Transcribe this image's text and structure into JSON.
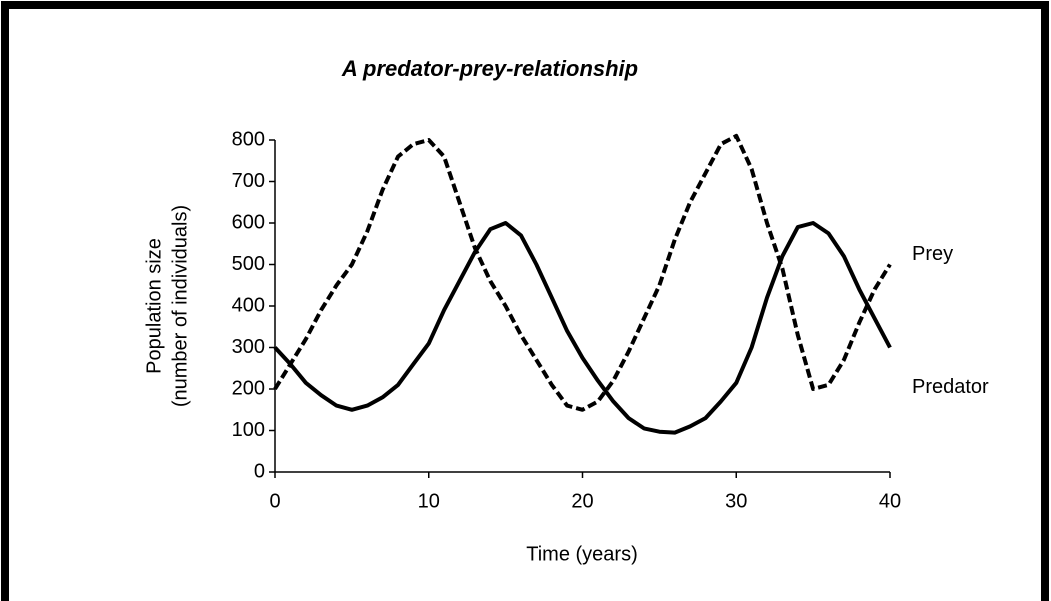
{
  "chart_data": {
    "type": "line",
    "title": "A predator-prey-relationship",
    "xlabel": "Time (years)",
    "ylabel": [
      "Population size",
      "(number of individuals)"
    ],
    "x": [
      0,
      1,
      2,
      3,
      4,
      5,
      6,
      7,
      8,
      9,
      10,
      11,
      12,
      13,
      14,
      15,
      16,
      17,
      18,
      19,
      20,
      21,
      22,
      23,
      24,
      25,
      26,
      27,
      28,
      29,
      30,
      31,
      32,
      33,
      34,
      35,
      36,
      37,
      38,
      39,
      40
    ],
    "series": [
      {
        "name": "Prey",
        "color": "#000000",
        "line_style": "dashed",
        "values": [
          200,
          260,
          320,
          390,
          450,
          500,
          580,
          680,
          760,
          790,
          800,
          760,
          650,
          540,
          460,
          400,
          330,
          270,
          210,
          160,
          150,
          170,
          220,
          290,
          370,
          450,
          560,
          650,
          720,
          790,
          810,
          730,
          600,
          490,
          330,
          200,
          210,
          270,
          360,
          440,
          500
        ]
      },
      {
        "name": "Predator",
        "color": "#000000",
        "line_style": "solid",
        "values": [
          300,
          260,
          215,
          185,
          160,
          150,
          160,
          180,
          210,
          260,
          310,
          390,
          460,
          530,
          585,
          600,
          570,
          500,
          420,
          340,
          275,
          220,
          170,
          130,
          105,
          97,
          95,
          110,
          130,
          170,
          215,
          300,
          420,
          520,
          590,
          600,
          575,
          520,
          440,
          370,
          300
        ]
      }
    ],
    "xlim": [
      0,
      40
    ],
    "xticks": [
      0,
      10,
      20,
      30,
      40
    ],
    "ylim": [
      0,
      800
    ],
    "yticks": [
      0,
      100,
      200,
      300,
      400,
      500,
      600,
      700,
      800
    ],
    "grid": false,
    "legend": "end-of-line"
  }
}
